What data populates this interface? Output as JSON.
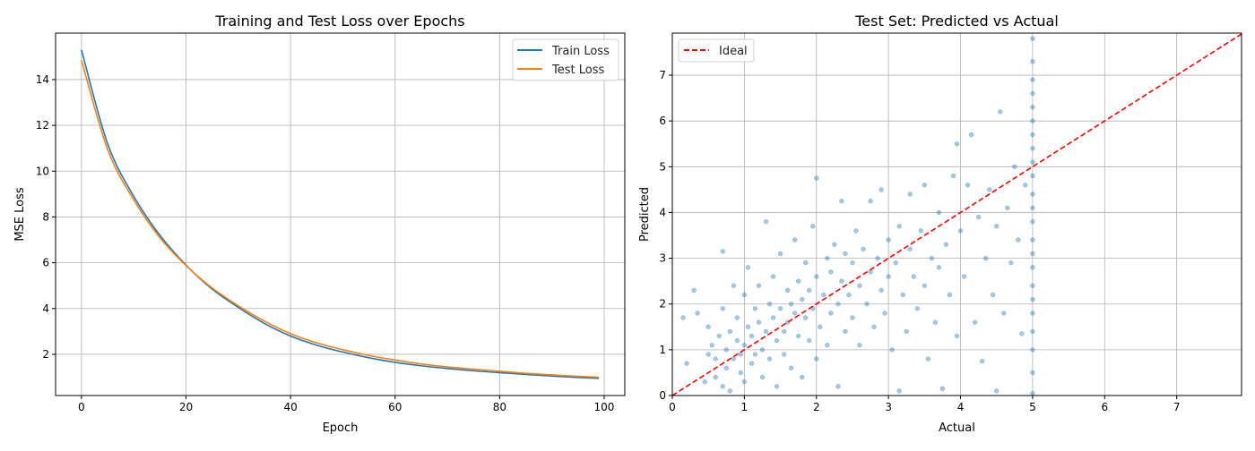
{
  "chart_data": [
    {
      "type": "line",
      "title": "Training and Test Loss over Epochs",
      "xlabel": "Epoch",
      "ylabel": "MSE Loss",
      "xlim": [
        -4.95,
        103.95
      ],
      "ylim": [
        0.2,
        16.03
      ],
      "xticks": [
        0,
        20,
        40,
        60,
        80,
        100
      ],
      "yticks": [
        2,
        4,
        6,
        8,
        10,
        12,
        14
      ],
      "grid": true,
      "legend": "top-right",
      "x": [
        0,
        5,
        10,
        15,
        20,
        25,
        30,
        35,
        40,
        45,
        50,
        55,
        60,
        65,
        70,
        75,
        80,
        85,
        90,
        95,
        99
      ],
      "series": [
        {
          "name": "Train Loss",
          "color": "#1f77b4",
          "values": [
            15.3,
            11.2,
            8.9,
            7.2,
            5.9,
            4.85,
            4.05,
            3.35,
            2.8,
            2.4,
            2.1,
            1.85,
            1.65,
            1.5,
            1.38,
            1.28,
            1.2,
            1.12,
            1.05,
            0.99,
            0.95
          ]
        },
        {
          "name": "Test Loss",
          "color": "#ff7f0e",
          "values": [
            14.85,
            10.95,
            8.75,
            7.1,
            5.88,
            4.9,
            4.12,
            3.45,
            2.9,
            2.5,
            2.2,
            1.95,
            1.75,
            1.58,
            1.45,
            1.35,
            1.26,
            1.17,
            1.1,
            1.04,
            1.0
          ]
        }
      ]
    },
    {
      "type": "scatter",
      "title": "Test Set: Predicted vs Actual",
      "xlabel": "Actual",
      "ylabel": "Predicted",
      "xlim": [
        0,
        7.9
      ],
      "ylim": [
        0,
        7.92
      ],
      "xticks": [
        0,
        1,
        2,
        3,
        4,
        5,
        6,
        7
      ],
      "yticks": [
        0,
        1,
        2,
        3,
        4,
        5,
        6,
        7
      ],
      "grid": true,
      "legend": "top-left",
      "point_color": "#1f77b4",
      "reference_line": {
        "name": "Ideal",
        "color": "#ff0000",
        "style": "dashed",
        "from": [
          0,
          0
        ],
        "to": [
          7.9,
          7.9
        ]
      },
      "points": [
        [
          0.15,
          1.7
        ],
        [
          0.3,
          2.3
        ],
        [
          0.35,
          1.8
        ],
        [
          0.2,
          0.7
        ],
        [
          0.45,
          0.3
        ],
        [
          0.5,
          0.9
        ],
        [
          0.5,
          1.5
        ],
        [
          0.55,
          1.1
        ],
        [
          0.6,
          0.4
        ],
        [
          0.6,
          0.8
        ],
        [
          0.65,
          1.3
        ],
        [
          0.7,
          3.15
        ],
        [
          0.7,
          0.2
        ],
        [
          0.7,
          1.9
        ],
        [
          0.75,
          0.6
        ],
        [
          0.75,
          1.0
        ],
        [
          0.8,
          1.4
        ],
        [
          0.8,
          0.1
        ],
        [
          0.85,
          2.4
        ],
        [
          0.85,
          0.8
        ],
        [
          0.9,
          1.2
        ],
        [
          0.9,
          1.7
        ],
        [
          0.95,
          0.5
        ],
        [
          0.95,
          0.9
        ],
        [
          1.0,
          2.2
        ],
        [
          1.0,
          1.1
        ],
        [
          1.0,
          0.3
        ],
        [
          1.05,
          1.5
        ],
        [
          1.05,
          2.8
        ],
        [
          1.1,
          0.7
        ],
        [
          1.1,
          1.3
        ],
        [
          1.15,
          1.9
        ],
        [
          1.15,
          0.9
        ],
        [
          1.2,
          2.4
        ],
        [
          1.2,
          1.6
        ],
        [
          1.25,
          1.0
        ],
        [
          1.25,
          0.4
        ],
        [
          1.3,
          3.8
        ],
        [
          1.3,
          1.4
        ],
        [
          1.35,
          2.0
        ],
        [
          1.35,
          0.8
        ],
        [
          1.4,
          1.7
        ],
        [
          1.4,
          2.6
        ],
        [
          1.45,
          1.2
        ],
        [
          1.45,
          0.2
        ],
        [
          1.5,
          1.9
        ],
        [
          1.5,
          3.1
        ],
        [
          1.55,
          1.4
        ],
        [
          1.55,
          0.9
        ],
        [
          1.6,
          2.3
        ],
        [
          1.6,
          1.6
        ],
        [
          1.65,
          2.0
        ],
        [
          1.65,
          0.6
        ],
        [
          1.7,
          1.8
        ],
        [
          1.7,
          3.4
        ],
        [
          1.75,
          1.3
        ],
        [
          1.75,
          2.5
        ],
        [
          1.8,
          2.1
        ],
        [
          1.8,
          0.4
        ],
        [
          1.85,
          1.7
        ],
        [
          1.85,
          2.9
        ],
        [
          1.9,
          1.2
        ],
        [
          1.9,
          2.3
        ],
        [
          1.95,
          3.7
        ],
        [
          1.95,
          1.9
        ],
        [
          2.0,
          4.75
        ],
        [
          2.0,
          2.6
        ],
        [
          2.0,
          0.8
        ],
        [
          2.05,
          1.5
        ],
        [
          2.1,
          2.2
        ],
        [
          2.15,
          3.0
        ],
        [
          2.15,
          1.1
        ],
        [
          2.2,
          2.7
        ],
        [
          2.2,
          1.8
        ],
        [
          2.25,
          3.3
        ],
        [
          2.3,
          2.0
        ],
        [
          2.3,
          0.2
        ],
        [
          2.35,
          4.25
        ],
        [
          2.35,
          2.5
        ],
        [
          2.4,
          1.4
        ],
        [
          2.4,
          3.1
        ],
        [
          2.45,
          2.2
        ],
        [
          2.5,
          1.7
        ],
        [
          2.5,
          2.9
        ],
        [
          2.55,
          3.6
        ],
        [
          2.6,
          2.4
        ],
        [
          2.6,
          1.1
        ],
        [
          2.65,
          3.2
        ],
        [
          2.7,
          2.0
        ],
        [
          2.75,
          4.25
        ],
        [
          2.75,
          2.7
        ],
        [
          2.8,
          1.5
        ],
        [
          2.85,
          3.0
        ],
        [
          2.9,
          2.3
        ],
        [
          2.9,
          4.5
        ],
        [
          2.95,
          1.8
        ],
        [
          3.0,
          3.4
        ],
        [
          3.0,
          2.6
        ],
        [
          3.05,
          1.0
        ],
        [
          3.1,
          2.9
        ],
        [
          3.15,
          0.1
        ],
        [
          3.15,
          3.7
        ],
        [
          3.2,
          2.2
        ],
        [
          3.25,
          1.4
        ],
        [
          3.3,
          3.2
        ],
        [
          3.3,
          4.4
        ],
        [
          3.35,
          2.6
        ],
        [
          3.4,
          1.9
        ],
        [
          3.45,
          3.6
        ],
        [
          3.5,
          4.6
        ],
        [
          3.5,
          2.4
        ],
        [
          3.55,
          0.8
        ],
        [
          3.6,
          3.0
        ],
        [
          3.65,
          1.6
        ],
        [
          3.7,
          4.0
        ],
        [
          3.7,
          2.8
        ],
        [
          3.75,
          0.15
        ],
        [
          3.8,
          3.3
        ],
        [
          3.85,
          2.2
        ],
        [
          3.9,
          4.8
        ],
        [
          3.95,
          5.5
        ],
        [
          3.95,
          1.3
        ],
        [
          4.0,
          3.6
        ],
        [
          4.05,
          2.6
        ],
        [
          4.1,
          4.6
        ],
        [
          4.15,
          5.7
        ],
        [
          4.2,
          1.6
        ],
        [
          4.25,
          3.9
        ],
        [
          4.3,
          0.75
        ],
        [
          4.35,
          3.0
        ],
        [
          4.4,
          4.5
        ],
        [
          4.45,
          2.2
        ],
        [
          4.5,
          0.1
        ],
        [
          4.5,
          3.7
        ],
        [
          4.55,
          6.2
        ],
        [
          4.6,
          1.8
        ],
        [
          4.65,
          4.1
        ],
        [
          4.7,
          2.9
        ],
        [
          4.75,
          5.0
        ],
        [
          4.8,
          3.4
        ],
        [
          4.85,
          1.35
        ],
        [
          4.9,
          4.6
        ],
        [
          5.0,
          0.05
        ],
        [
          5.0,
          0.5
        ],
        [
          5.0,
          1.0
        ],
        [
          5.0,
          1.4
        ],
        [
          5.0,
          1.8
        ],
        [
          5.0,
          2.1
        ],
        [
          5.0,
          2.4
        ],
        [
          5.0,
          2.8
        ],
        [
          5.0,
          3.1
        ],
        [
          5.0,
          3.4
        ],
        [
          5.0,
          3.8
        ],
        [
          5.0,
          4.1
        ],
        [
          5.0,
          4.4
        ],
        [
          5.0,
          4.8
        ],
        [
          5.0,
          5.1
        ],
        [
          5.0,
          5.4
        ],
        [
          5.0,
          5.7
        ],
        [
          5.0,
          6.0
        ],
        [
          5.0,
          6.3
        ],
        [
          5.0,
          6.6
        ],
        [
          5.0,
          6.9
        ],
        [
          5.0,
          7.3
        ],
        [
          5.0,
          7.8
        ]
      ]
    }
  ]
}
